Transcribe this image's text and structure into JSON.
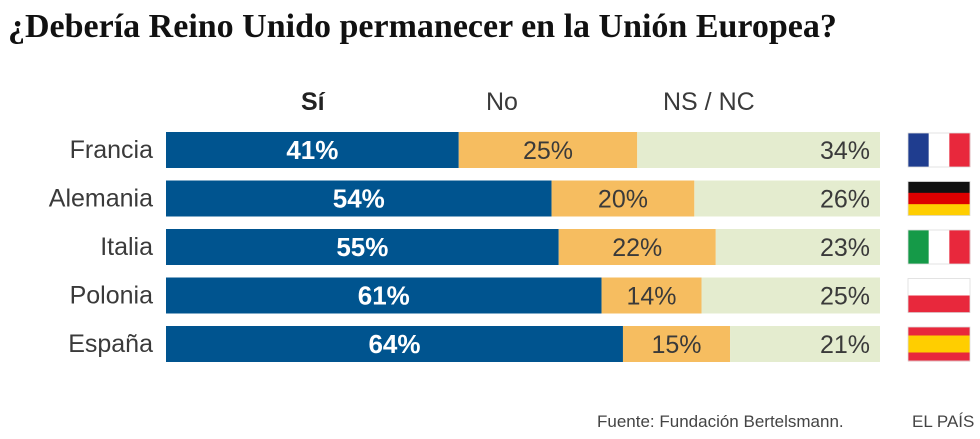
{
  "chart_data": {
    "type": "bar",
    "orientation": "horizontal",
    "stacked": true,
    "title": "¿Debería Reino Unido permanecer en la Unión Europea?",
    "categories": [
      "Francia",
      "Alemania",
      "Italia",
      "Polonia",
      "España"
    ],
    "series": [
      {
        "name": "Sí",
        "values": [
          41,
          54,
          55,
          61,
          64
        ],
        "labels": [
          "41%",
          "54%",
          "55%",
          "61%",
          "64%"
        ],
        "color": "#00548f"
      },
      {
        "name": "No",
        "values": [
          25,
          20,
          22,
          14,
          15
        ],
        "labels": [
          "25%",
          "20%",
          "22%",
          "14%",
          "15%"
        ],
        "color": "#f6bd60"
      },
      {
        "name": "NS / NC",
        "values": [
          34,
          26,
          23,
          25,
          21
        ],
        "labels": [
          "34%",
          "26%",
          "23%",
          "25%",
          "21%"
        ],
        "color": "#e4eccf"
      }
    ],
    "xlim": [
      0,
      100
    ],
    "xlabel": "",
    "ylabel": "",
    "legend": "top",
    "flags": [
      "france-flag",
      "germany-flag",
      "italy-flag",
      "poland-flag",
      "spain-flag"
    ]
  },
  "footer": {
    "source": "Fuente: Fundación Bertelsmann.",
    "brand": "EL PAÍS"
  }
}
